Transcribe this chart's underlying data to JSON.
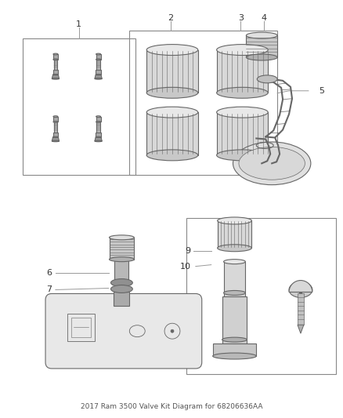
{
  "title": "2017 Ram 3500 Valve Kit Diagram for 68206636AA",
  "background_color": "#ffffff",
  "figsize": [
    4.38,
    5.33
  ],
  "dpi": 100,
  "line_color": "#666666",
  "label_color": "#333333",
  "label_fontsize": 8,
  "fill_light": "#e8e8e8",
  "fill_dark": "#b0b0b0",
  "fill_mid": "#cccccc"
}
